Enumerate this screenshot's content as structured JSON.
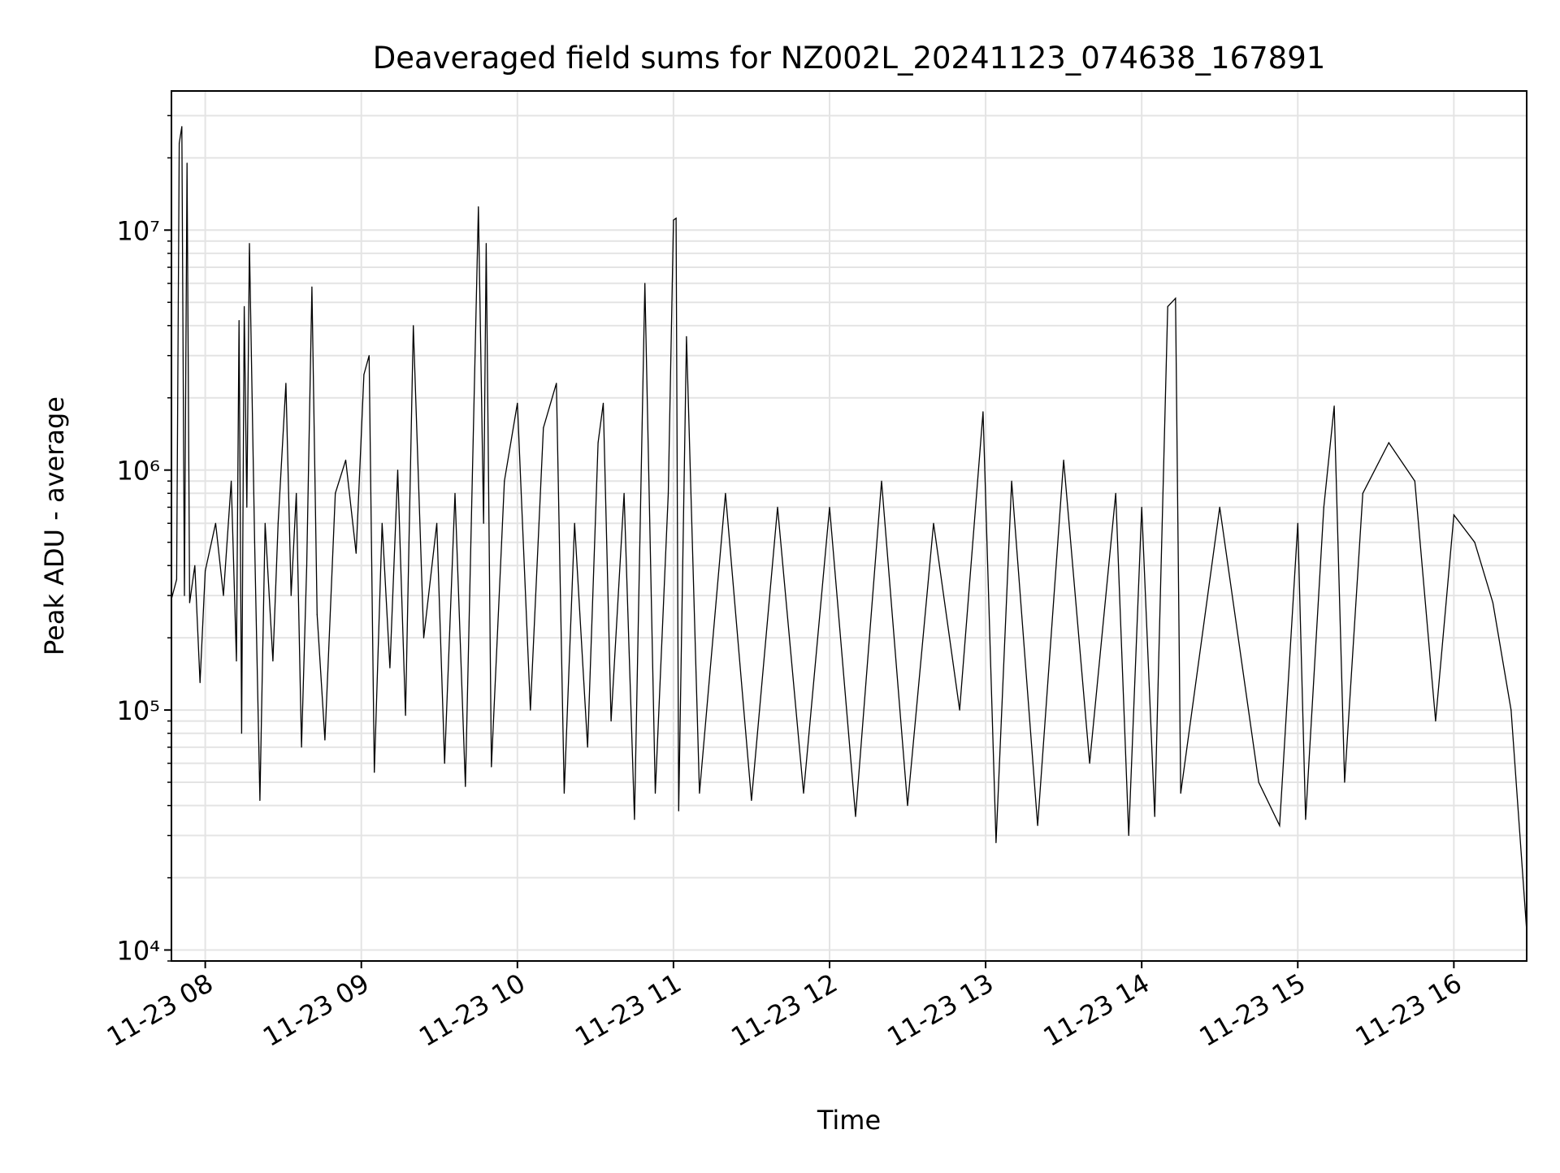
{
  "chart_data": {
    "type": "line",
    "title": "Deaveraged field sums for NZ002L_20241123_074638_167891",
    "xlabel": "Time",
    "ylabel": "Peak ADU - average",
    "xlim": [
      "2024-11-23 07:47",
      "2024-11-23 16:28"
    ],
    "ylim": [
      9000,
      38000000
    ],
    "y_scale": "log",
    "grid": true,
    "legend": "none",
    "x_ticks": [
      {
        "time": "2024-11-23 08:00",
        "label": "11-23 08"
      },
      {
        "time": "2024-11-23 09:00",
        "label": "11-23 09"
      },
      {
        "time": "2024-11-23 10:00",
        "label": "11-23 10"
      },
      {
        "time": "2024-11-23 11:00",
        "label": "11-23 11"
      },
      {
        "time": "2024-11-23 12:00",
        "label": "11-23 12"
      },
      {
        "time": "2024-11-23 13:00",
        "label": "11-23 13"
      },
      {
        "time": "2024-11-23 14:00",
        "label": "11-23 14"
      },
      {
        "time": "2024-11-23 15:00",
        "label": "11-23 15"
      },
      {
        "time": "2024-11-23 16:00",
        "label": "11-23 16"
      }
    ],
    "y_ticks": [
      {
        "value": 10000,
        "label": "10⁴"
      },
      {
        "value": 100000,
        "label": "10⁵"
      },
      {
        "value": 1000000,
        "label": "10⁶"
      },
      {
        "value": 10000000,
        "label": "10⁷"
      }
    ],
    "series": [
      {
        "color": "#000000",
        "points": [
          [
            "2024-11-23 07:47",
            290000
          ],
          [
            "2024-11-23 07:49",
            350000
          ],
          [
            "2024-11-23 07:50",
            23000000
          ],
          [
            "2024-11-23 07:51",
            27000000
          ],
          [
            "2024-11-23 07:52",
            300000
          ],
          [
            "2024-11-23 07:53",
            19000000
          ],
          [
            "2024-11-23 07:54",
            280000
          ],
          [
            "2024-11-23 07:56",
            400000
          ],
          [
            "2024-11-23 07:58",
            130000
          ],
          [
            "2024-11-23 08:00",
            380000
          ],
          [
            "2024-11-23 08:04",
            600000
          ],
          [
            "2024-11-23 08:07",
            300000
          ],
          [
            "2024-11-23 08:10",
            900000
          ],
          [
            "2024-11-23 08:12",
            160000
          ],
          [
            "2024-11-23 08:13",
            4200000
          ],
          [
            "2024-11-23 08:14",
            80000
          ],
          [
            "2024-11-23 08:15",
            4800000
          ],
          [
            "2024-11-23 08:16",
            700000
          ],
          [
            "2024-11-23 08:17",
            8800000
          ],
          [
            "2024-11-23 08:19",
            500000
          ],
          [
            "2024-11-23 08:21",
            42000
          ],
          [
            "2024-11-23 08:23",
            600000
          ],
          [
            "2024-11-23 08:26",
            160000
          ],
          [
            "2024-11-23 08:28",
            600000
          ],
          [
            "2024-11-23 08:31",
            2300000
          ],
          [
            "2024-11-23 08:33",
            300000
          ],
          [
            "2024-11-23 08:35",
            800000
          ],
          [
            "2024-11-23 08:37",
            70000
          ],
          [
            "2024-11-23 08:39",
            400000
          ],
          [
            "2024-11-23 08:41",
            5800000
          ],
          [
            "2024-11-23 08:43",
            250000
          ],
          [
            "2024-11-23 08:46",
            75000
          ],
          [
            "2024-11-23 08:50",
            800000
          ],
          [
            "2024-11-23 08:54",
            1100000
          ],
          [
            "2024-11-23 08:58",
            450000
          ],
          [
            "2024-11-23 09:01",
            2500000
          ],
          [
            "2024-11-23 09:03",
            3000000
          ],
          [
            "2024-11-23 09:05",
            55000
          ],
          [
            "2024-11-23 09:08",
            600000
          ],
          [
            "2024-11-23 09:11",
            150000
          ],
          [
            "2024-11-23 09:14",
            1000000
          ],
          [
            "2024-11-23 09:17",
            95000
          ],
          [
            "2024-11-23 09:20",
            4000000
          ],
          [
            "2024-11-23 09:24",
            200000
          ],
          [
            "2024-11-23 09:29",
            600000
          ],
          [
            "2024-11-23 09:32",
            60000
          ],
          [
            "2024-11-23 09:36",
            800000
          ],
          [
            "2024-11-23 09:40",
            48000
          ],
          [
            "2024-11-23 09:45",
            12500000
          ],
          [
            "2024-11-23 09:47",
            600000
          ],
          [
            "2024-11-23 09:48",
            8800000
          ],
          [
            "2024-11-23 09:50",
            58000
          ],
          [
            "2024-11-23 09:55",
            900000
          ],
          [
            "2024-11-23 10:00",
            1900000
          ],
          [
            "2024-11-23 10:05",
            100000
          ],
          [
            "2024-11-23 10:10",
            1500000
          ],
          [
            "2024-11-23 10:15",
            2300000
          ],
          [
            "2024-11-23 10:18",
            45000
          ],
          [
            "2024-11-23 10:22",
            600000
          ],
          [
            "2024-11-23 10:27",
            70000
          ],
          [
            "2024-11-23 10:31",
            1300000
          ],
          [
            "2024-11-23 10:33",
            1900000
          ],
          [
            "2024-11-23 10:36",
            90000
          ],
          [
            "2024-11-23 10:41",
            800000
          ],
          [
            "2024-11-23 10:45",
            35000
          ],
          [
            "2024-11-23 10:49",
            6000000
          ],
          [
            "2024-11-23 10:53",
            45000
          ],
          [
            "2024-11-23 10:58",
            800000
          ],
          [
            "2024-11-23 11:00",
            11000000
          ],
          [
            "2024-11-23 11:01",
            11200000
          ],
          [
            "2024-11-23 11:02",
            38000
          ],
          [
            "2024-11-23 11:05",
            3600000
          ],
          [
            "2024-11-23 11:10",
            45000
          ],
          [
            "2024-11-23 11:20",
            800000
          ],
          [
            "2024-11-23 11:30",
            42000
          ],
          [
            "2024-11-23 11:40",
            700000
          ],
          [
            "2024-11-23 11:50",
            45000
          ],
          [
            "2024-11-23 12:00",
            700000
          ],
          [
            "2024-11-23 12:10",
            36000
          ],
          [
            "2024-11-23 12:20",
            900000
          ],
          [
            "2024-11-23 12:30",
            40000
          ],
          [
            "2024-11-23 12:40",
            600000
          ],
          [
            "2024-11-23 12:50",
            100000
          ],
          [
            "2024-11-23 12:59",
            1750000
          ],
          [
            "2024-11-23 13:04",
            28000
          ],
          [
            "2024-11-23 13:10",
            900000
          ],
          [
            "2024-11-23 13:20",
            33000
          ],
          [
            "2024-11-23 13:30",
            1100000
          ],
          [
            "2024-11-23 13:40",
            60000
          ],
          [
            "2024-11-23 13:50",
            800000
          ],
          [
            "2024-11-23 13:55",
            30000
          ],
          [
            "2024-11-23 14:00",
            700000
          ],
          [
            "2024-11-23 14:05",
            36000
          ],
          [
            "2024-11-23 14:10",
            4800000
          ],
          [
            "2024-11-23 14:13",
            5200000
          ],
          [
            "2024-11-23 14:15",
            45000
          ],
          [
            "2024-11-23 14:30",
            700000
          ],
          [
            "2024-11-23 14:45",
            50000
          ],
          [
            "2024-11-23 14:53",
            33000
          ],
          [
            "2024-11-23 15:00",
            600000
          ],
          [
            "2024-11-23 15:03",
            35000
          ],
          [
            "2024-11-23 15:10",
            700000
          ],
          [
            "2024-11-23 15:14",
            1850000
          ],
          [
            "2024-11-23 15:18",
            50000
          ],
          [
            "2024-11-23 15:25",
            800000
          ],
          [
            "2024-11-23 15:35",
            1300000
          ],
          [
            "2024-11-23 15:45",
            900000
          ],
          [
            "2024-11-23 15:53",
            90000
          ],
          [
            "2024-11-23 16:00",
            650000
          ],
          [
            "2024-11-23 16:08",
            500000
          ],
          [
            "2024-11-23 16:15",
            280000
          ],
          [
            "2024-11-23 16:22",
            100000
          ],
          [
            "2024-11-23 16:28",
            12000
          ]
        ]
      }
    ]
  }
}
